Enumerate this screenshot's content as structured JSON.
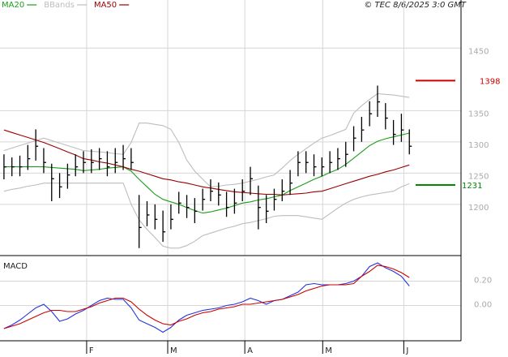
{
  "chart_data": [
    {
      "type": "ohlc",
      "timestamp": "© TEC 8/6/2025 3:0 GMT",
      "x": [
        0,
        1,
        2,
        3,
        4,
        5,
        6,
        7,
        8,
        9,
        10,
        11,
        12,
        13,
        14,
        15,
        16,
        17,
        18,
        19,
        20,
        21,
        22,
        23,
        24,
        25,
        26,
        27,
        28,
        29,
        30,
        31,
        32,
        33,
        34,
        35,
        36,
        37,
        38,
        39,
        40,
        41,
        42,
        43,
        44,
        45,
        46,
        47,
        48,
        49,
        50,
        51
      ],
      "xlim": [
        -0.5,
        57.5
      ],
      "ylim": [
        1118,
        1527
      ],
      "yticks": [
        1200,
        1250,
        1300,
        1350,
        1450
      ],
      "grid": true,
      "bars": {
        "color": "#000000",
        "high": [
          1280,
          1275,
          1278,
          1295,
          1320,
          1290,
          1265,
          1250,
          1265,
          1280,
          1285,
          1288,
          1290,
          1285,
          1290,
          1295,
          1290,
          1215,
          1205,
          1200,
          1190,
          1200,
          1220,
          1215,
          1210,
          1225,
          1240,
          1235,
          1220,
          1225,
          1240,
          1260,
          1230,
          1215,
          1225,
          1240,
          1255,
          1285,
          1285,
          1280,
          1275,
          1285,
          1290,
          1300,
          1325,
          1340,
          1365,
          1390,
          1362,
          1335,
          1345,
          1320
        ],
        "low": [
          1240,
          1245,
          1245,
          1255,
          1270,
          1250,
          1205,
          1210,
          1225,
          1245,
          1250,
          1250,
          1255,
          1245,
          1250,
          1255,
          1255,
          1130,
          1165,
          1160,
          1140,
          1160,
          1185,
          1178,
          1170,
          1190,
          1205,
          1198,
          1180,
          1185,
          1205,
          1215,
          1160,
          1170,
          1190,
          1205,
          1215,
          1245,
          1250,
          1245,
          1245,
          1250,
          1255,
          1260,
          1285,
          1300,
          1325,
          1340,
          1320,
          1295,
          1300,
          1280
        ],
        "close": [
          1260,
          1260,
          1260,
          1273,
          1293,
          1267,
          1241,
          1228,
          1247,
          1260,
          1267,
          1267,
          1273,
          1260,
          1267,
          1273,
          1267,
          1163,
          1183,
          1176,
          1156,
          1176,
          1202,
          1195,
          1189,
          1208,
          1221,
          1215,
          1195,
          1202,
          1221,
          1241,
          1195,
          1189,
          1208,
          1221,
          1234,
          1267,
          1267,
          1260,
          1260,
          1267,
          1273,
          1280,
          1306,
          1319,
          1345,
          1364,
          1338,
          1312,
          1319,
          1293
        ]
      },
      "series": [
        {
          "name": "MA20",
          "color": "#1a9e1a",
          "values": [
            1260,
            1260,
            1260,
            1260,
            1260,
            1260,
            1259,
            1258,
            1257,
            1256,
            1254,
            1255,
            1256,
            1258,
            1259,
            1260,
            1253,
            1240,
            1228,
            1216,
            1208,
            1204,
            1200,
            1195,
            1190,
            1186,
            1188,
            1191,
            1194,
            1198,
            1202,
            1204,
            1207,
            1209,
            1212,
            1215,
            1222,
            1228,
            1234,
            1240,
            1245,
            1251,
            1256,
            1264,
            1274,
            1284,
            1294,
            1301,
            1305,
            1308,
            1311,
            1314
          ]
        },
        {
          "name": "BBands",
          "color": "#bdbdbd",
          "upper": [
            1286,
            1290,
            1294,
            1298,
            1302,
            1306,
            1302,
            1298,
            1294,
            1290,
            1286,
            1285,
            1284,
            1283,
            1281,
            1280,
            1299,
            1330,
            1330,
            1328,
            1326,
            1320,
            1299,
            1271,
            1253,
            1240,
            1228,
            1229,
            1231,
            1232,
            1234,
            1237,
            1240,
            1244,
            1247,
            1258,
            1270,
            1280,
            1289,
            1298,
            1306,
            1310,
            1315,
            1320,
            1346,
            1358,
            1368,
            1377,
            1376,
            1375,
            1373,
            1371
          ],
          "lower": [
            1221,
            1224,
            1226,
            1229,
            1231,
            1234,
            1234,
            1234,
            1234,
            1234,
            1234,
            1234,
            1234,
            1234,
            1234,
            1234,
            1200,
            1175,
            1160,
            1147,
            1133,
            1130,
            1130,
            1134,
            1141,
            1150,
            1154,
            1158,
            1162,
            1165,
            1169,
            1171,
            1174,
            1177,
            1181,
            1182,
            1182,
            1182,
            1180,
            1178,
            1176,
            1185,
            1194,
            1202,
            1208,
            1212,
            1215,
            1217,
            1219,
            1221,
            1228,
            1233
          ]
        },
        {
          "name": "MA50",
          "color": "#990000",
          "values": [
            1319,
            1315,
            1311,
            1307,
            1303,
            1299,
            1294,
            1289,
            1284,
            1279,
            1273,
            1271,
            1268,
            1266,
            1263,
            1260,
            1256,
            1253,
            1249,
            1245,
            1241,
            1239,
            1236,
            1234,
            1231,
            1228,
            1226,
            1224,
            1222,
            1220,
            1219,
            1218,
            1217,
            1216,
            1216,
            1215,
            1216,
            1217,
            1218,
            1220,
            1221,
            1225,
            1229,
            1233,
            1237,
            1241,
            1245,
            1248,
            1252,
            1255,
            1259,
            1263
          ]
        }
      ],
      "levels": [
        {
          "value": 1398,
          "color": "#cc0000"
        },
        {
          "value": 1231,
          "color": "#008800"
        }
      ]
    },
    {
      "type": "line",
      "title": "MACD",
      "xticks": [
        {
          "value": 10.4,
          "label": "F"
        },
        {
          "value": 20.6,
          "label": "M"
        },
        {
          "value": 30.3,
          "label": "A"
        },
        {
          "value": 40.1,
          "label": "M"
        },
        {
          "value": 50.3,
          "label": "J"
        }
      ],
      "ylim": [
        -0.29,
        0.39
      ],
      "yticks": [
        {
          "value": 0,
          "label": "0.00"
        },
        {
          "value": 0.2,
          "label": "0.20"
        }
      ],
      "grid": true,
      "series": [
        {
          "color": "#2233dd",
          "values": [
            -0.19,
            -0.16,
            -0.12,
            -0.07,
            -0.02,
            0.01,
            -0.05,
            -0.13,
            -0.11,
            -0.07,
            -0.04,
            0,
            0.04,
            0.06,
            0.05,
            0.05,
            -0.02,
            -0.12,
            -0.15,
            -0.18,
            -0.22,
            -0.18,
            -0.12,
            -0.08,
            -0.06,
            -0.04,
            -0.03,
            -0.02,
            0,
            0.01,
            0.03,
            0.06,
            0.04,
            0.01,
            0.04,
            0.05,
            0.08,
            0.11,
            0.17,
            0.18,
            0.17,
            0.17,
            0.17,
            0.18,
            0.2,
            0.24,
            0.32,
            0.35,
            0.31,
            0.28,
            0.24,
            0.16
          ]
        },
        {
          "color": "#cc0000",
          "values": [
            -0.19,
            -0.17,
            -0.15,
            -0.12,
            -0.09,
            -0.06,
            -0.04,
            -0.04,
            -0.05,
            -0.05,
            -0.03,
            -0.01,
            0.02,
            0.04,
            0.06,
            0.06,
            0.03,
            -0.03,
            -0.08,
            -0.12,
            -0.15,
            -0.16,
            -0.13,
            -0.11,
            -0.08,
            -0.06,
            -0.05,
            -0.03,
            -0.02,
            -0.01,
            0.01,
            0.01,
            0.02,
            0.03,
            0.04,
            0.05,
            0.07,
            0.09,
            0.12,
            0.14,
            0.16,
            0.17,
            0.17,
            0.17,
            0.18,
            0.24,
            0.28,
            0.33,
            0.32,
            0.3,
            0.27,
            0.23
          ]
        }
      ]
    }
  ]
}
